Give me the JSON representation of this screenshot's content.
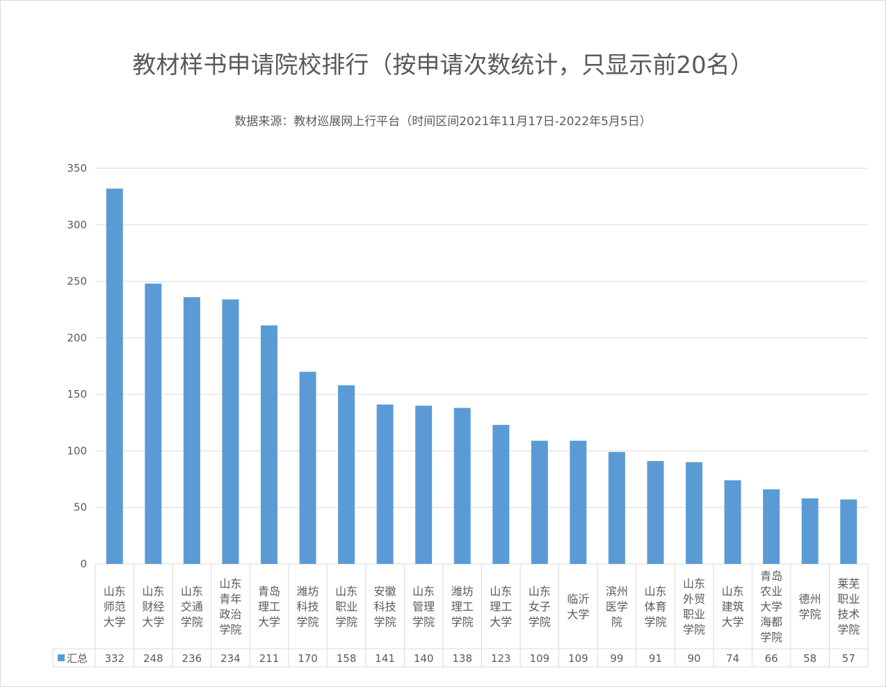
{
  "title": "教材样书申请院校排行（按申请次数统计，只显示前20名）",
  "subtitle": "数据来源：教材巡展网上行平台（时间区间2021年11月17日-2022年5月5日）",
  "colors": {
    "bar": "#5b9bd5",
    "grid": "#d9d9d9",
    "text": "#595959"
  },
  "chart_data": {
    "type": "bar",
    "title": "教材样书申请院校排行（按申请次数统计，只显示前20名）",
    "subtitle": "数据来源：教材巡展网上行平台（时间区间2021年11月17日-2022年5月5日）",
    "categories": [
      [
        "山东",
        "师范",
        "大学"
      ],
      [
        "山东",
        "财经",
        "大学"
      ],
      [
        "山东",
        "交通",
        "学院"
      ],
      [
        "山东",
        "青年",
        "政治",
        "学院"
      ],
      [
        "青岛",
        "理工",
        "大学"
      ],
      [
        "潍坊",
        "科技",
        "学院"
      ],
      [
        "山东",
        "职业",
        "学院"
      ],
      [
        "安徽",
        "科技",
        "学院"
      ],
      [
        "山东",
        "管理",
        "学院"
      ],
      [
        "潍坊",
        "理工",
        "学院"
      ],
      [
        "山东",
        "理工",
        "大学"
      ],
      [
        "山东",
        "女子",
        "学院"
      ],
      [
        "临沂",
        "大学"
      ],
      [
        "滨州",
        "医学",
        "院"
      ],
      [
        "山东",
        "体育",
        "学院"
      ],
      [
        "山东",
        "外贸",
        "职业",
        "学院"
      ],
      [
        "山东",
        "建筑",
        "大学"
      ],
      [
        "青岛",
        "农业",
        "大学",
        "海都",
        "学院"
      ],
      [
        "德州",
        "学院"
      ],
      [
        "莱芜",
        "职业",
        "技术",
        "学院"
      ]
    ],
    "series": [
      {
        "name": "汇总",
        "values": [
          332,
          248,
          236,
          234,
          211,
          170,
          158,
          141,
          140,
          138,
          123,
          109,
          109,
          99,
          91,
          90,
          74,
          66,
          58,
          57
        ]
      }
    ],
    "y_ticks": [
      "0",
      "50",
      "100",
      "150",
      "200",
      "250",
      "300",
      "350"
    ],
    "ylim": [
      0,
      350
    ],
    "grid": true,
    "data_table": true
  }
}
